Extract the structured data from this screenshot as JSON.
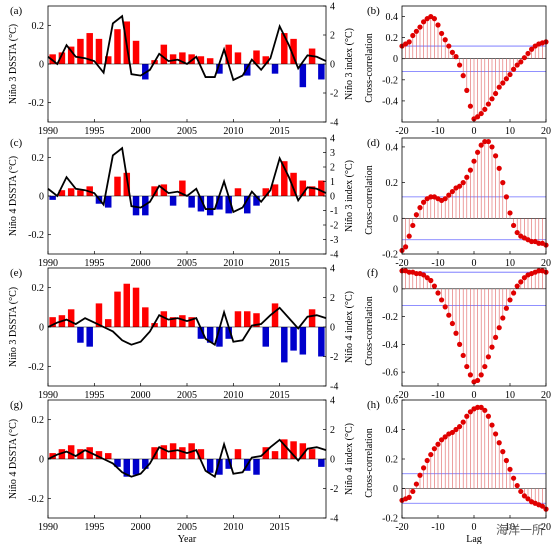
{
  "figure": {
    "watermark": "海洋一所",
    "colors": {
      "positive": "#ff0000",
      "negative": "#0000cc",
      "index_line": "#000000",
      "corr_marker": "#e00000",
      "corr_stem": "#e06060",
      "significance": "#6b6bff"
    }
  },
  "chart_data": [
    {
      "id": "a",
      "panel_label": "(a)",
      "type": "bar",
      "xlabel": "",
      "ylabel_left": "Niño 3 DSSTA (°C)",
      "ylabel_right": "Niño 3 index (°C)",
      "x_range": [
        1990,
        2020
      ],
      "x_ticks": [
        "1990",
        "1995",
        "2000",
        "2005",
        "2010",
        "2015"
      ],
      "y_left_range": [
        -0.3,
        0.3
      ],
      "y_left_ticks": [
        "-0.2",
        "0",
        "0.2"
      ],
      "y_right_range": [
        -4,
        4
      ],
      "y_right_ticks": [
        "-4",
        "-2",
        "0",
        "2",
        "4"
      ],
      "series": [
        {
          "name": "",
          "kind": "bar_pos_neg",
          "x": [
            1990,
            1991,
            1992,
            1993,
            1994,
            1995,
            1996,
            1997,
            1998,
            1999,
            2000,
            2001,
            2002,
            2003,
            2004,
            2005,
            2006,
            2007,
            2008,
            2009,
            2010,
            2011,
            2012,
            2013,
            2014,
            2015,
            2016,
            2017,
            2018,
            2019
          ],
          "values": [
            0.05,
            0.06,
            0.09,
            0.13,
            0.16,
            0.13,
            0.04,
            0.18,
            0.22,
            0.12,
            -0.08,
            0.02,
            0.1,
            0.05,
            0.06,
            0.05,
            0.04,
            0.03,
            -0.05,
            0.1,
            0.06,
            -0.06,
            0.07,
            0.04,
            -0.05,
            0.16,
            0.13,
            -0.12,
            0.08,
            -0.08
          ]
        },
        {
          "name": "",
          "kind": "line_right_axis",
          "x": [
            1990,
            1991,
            1992,
            1993,
            1994,
            1995,
            1996,
            1997,
            1998,
            1999,
            2000,
            2001,
            2002,
            2003,
            2004,
            2005,
            2006,
            2007,
            2008,
            2009,
            2010,
            2011,
            2012,
            2013,
            2014,
            2015,
            2016,
            2017,
            2018,
            2019,
            2020
          ],
          "values": [
            0.5,
            0.0,
            1.3,
            0.5,
            0.4,
            0.2,
            -0.6,
            2.8,
            3.3,
            -0.7,
            -0.8,
            -0.4,
            0.7,
            0.2,
            0.3,
            0.0,
            0.5,
            -0.9,
            -0.9,
            1.0,
            -1.1,
            -0.8,
            0.3,
            -0.4,
            0.4,
            2.6,
            1.3,
            -0.3,
            0.6,
            0.5,
            0.2
          ]
        }
      ]
    },
    {
      "id": "b",
      "panel_label": "(b)",
      "type": "stem",
      "xlabel": "",
      "ylabel": "Cross-correlation",
      "x_range": [
        -20,
        20
      ],
      "x_ticks": [
        "-20",
        "-10",
        "0",
        "10",
        "20"
      ],
      "y_range": [
        -0.6,
        0.5
      ],
      "y_ticks": [
        "-0.4",
        "-0.2",
        "0",
        "0.2",
        "0.4"
      ],
      "significance": 0.12,
      "x": [
        -20,
        -19,
        -18,
        -17,
        -16,
        -15,
        -14,
        -13,
        -12,
        -11,
        -10,
        -9,
        -8,
        -7,
        -6,
        -5,
        -4,
        -3,
        -2,
        -1,
        0,
        1,
        2,
        3,
        4,
        5,
        6,
        7,
        8,
        9,
        10,
        11,
        12,
        13,
        14,
        15,
        16,
        17,
        18,
        19,
        20
      ],
      "values": [
        0.12,
        0.14,
        0.16,
        0.22,
        0.26,
        0.3,
        0.35,
        0.38,
        0.4,
        0.38,
        0.32,
        0.24,
        0.18,
        0.12,
        0.06,
        0.02,
        -0.06,
        -0.16,
        -0.3,
        -0.45,
        -0.57,
        -0.55,
        -0.52,
        -0.48,
        -0.43,
        -0.38,
        -0.33,
        -0.27,
        -0.23,
        -0.19,
        -0.15,
        -0.1,
        -0.06,
        -0.03,
        0.01,
        0.05,
        0.09,
        0.12,
        0.14,
        0.15,
        0.16
      ]
    },
    {
      "id": "c",
      "panel_label": "(c)",
      "type": "bar",
      "xlabel": "",
      "ylabel_left": "Niño 4 DSSTA (°C)",
      "ylabel_right": "Niño 3 index (°C)",
      "x_range": [
        1990,
        2020
      ],
      "x_ticks": [
        "1990",
        "1995",
        "2000",
        "2005",
        "2010",
        "2015"
      ],
      "y_left_range": [
        -0.3,
        0.3
      ],
      "y_left_ticks": [
        "-0.2",
        "0",
        "0.2"
      ],
      "y_right_range": [
        -4,
        4
      ],
      "y_right_ticks": [
        "-4",
        "-3",
        "-2",
        "-1",
        "0",
        "1",
        "2",
        "3",
        "4"
      ],
      "series": [
        {
          "name": "",
          "kind": "bar_pos_neg",
          "x": [
            1990,
            1991,
            1992,
            1993,
            1994,
            1995,
            1996,
            1997,
            1998,
            1999,
            2000,
            2001,
            2002,
            2003,
            2004,
            2005,
            2006,
            2007,
            2008,
            2009,
            2010,
            2011,
            2012,
            2013,
            2014,
            2015,
            2016,
            2017,
            2018,
            2019
          ],
          "values": [
            -0.02,
            0.03,
            0.04,
            0.03,
            0.05,
            -0.04,
            -0.06,
            0.1,
            0.12,
            -0.1,
            -0.1,
            0.05,
            0.06,
            -0.05,
            0.08,
            -0.06,
            -0.08,
            -0.1,
            -0.07,
            -0.09,
            0.04,
            -0.09,
            -0.05,
            0.04,
            0.06,
            0.18,
            0.12,
            0.08,
            0.05,
            0.08
          ]
        },
        {
          "name": "",
          "kind": "line_right_axis",
          "x": [
            1990,
            1991,
            1992,
            1993,
            1994,
            1995,
            1996,
            1997,
            1998,
            1999,
            2000,
            2001,
            2002,
            2003,
            2004,
            2005,
            2006,
            2007,
            2008,
            2009,
            2010,
            2011,
            2012,
            2013,
            2014,
            2015,
            2016,
            2017,
            2018,
            2019,
            2020
          ],
          "values": [
            0.5,
            0.0,
            1.3,
            0.5,
            0.4,
            0.2,
            -0.6,
            2.8,
            3.3,
            -0.7,
            -0.8,
            -0.4,
            0.7,
            0.2,
            0.3,
            0.0,
            0.5,
            -0.9,
            -0.9,
            1.0,
            -1.1,
            -0.8,
            0.3,
            -0.4,
            0.4,
            2.6,
            1.3,
            -0.3,
            0.6,
            0.5,
            0.2
          ]
        }
      ]
    },
    {
      "id": "d",
      "panel_label": "(d)",
      "type": "stem",
      "xlabel": "",
      "ylabel": "Cross-correlation",
      "x_range": [
        -20,
        20
      ],
      "x_ticks": [
        "-20",
        "-10",
        "0",
        "10",
        "20"
      ],
      "y_range": [
        -0.2,
        0.45
      ],
      "y_ticks": [
        "-0.2",
        "0",
        "0.2",
        "0.4"
      ],
      "significance": 0.12,
      "x": [
        -20,
        -19,
        -18,
        -17,
        -16,
        -15,
        -14,
        -13,
        -12,
        -11,
        -10,
        -9,
        -8,
        -7,
        -6,
        -5,
        -4,
        -3,
        -2,
        -1,
        0,
        1,
        2,
        3,
        4,
        5,
        6,
        7,
        8,
        9,
        10,
        11,
        12,
        13,
        14,
        15,
        16,
        17,
        18,
        19,
        20
      ],
      "values": [
        -0.18,
        -0.16,
        -0.1,
        -0.04,
        0.02,
        0.06,
        0.09,
        0.11,
        0.12,
        0.12,
        0.11,
        0.1,
        0.11,
        0.13,
        0.15,
        0.17,
        0.18,
        0.2,
        0.23,
        0.27,
        0.32,
        0.37,
        0.41,
        0.43,
        0.43,
        0.4,
        0.35,
        0.28,
        0.2,
        0.12,
        0.03,
        -0.04,
        -0.08,
        -0.1,
        -0.11,
        -0.12,
        -0.13,
        -0.13,
        -0.14,
        -0.14,
        -0.15
      ]
    },
    {
      "id": "e",
      "panel_label": "(e)",
      "type": "bar",
      "xlabel": "",
      "ylabel_left": "Niño 3 DSSTA (°C)",
      "ylabel_right": "Niño 4 index (°C)",
      "x_range": [
        1990,
        2020
      ],
      "x_ticks": [
        "1990",
        "1995",
        "2000",
        "2005",
        "2010",
        "2015"
      ],
      "y_left_range": [
        -0.3,
        0.3
      ],
      "y_left_ticks": [
        "-0.2",
        "0",
        "0.2"
      ],
      "y_right_range": [
        -4,
        4
      ],
      "y_right_ticks": [
        "-4",
        "-2",
        "0",
        "2",
        "4"
      ],
      "series": [
        {
          "name": "",
          "kind": "bar_pos_neg",
          "x": [
            1990,
            1991,
            1992,
            1993,
            1994,
            1995,
            1996,
            1997,
            1998,
            1999,
            2000,
            2001,
            2002,
            2003,
            2004,
            2005,
            2006,
            2007,
            2008,
            2009,
            2010,
            2011,
            2012,
            2013,
            2014,
            2015,
            2016,
            2017,
            2018,
            2019
          ],
          "values": [
            0.05,
            0.06,
            0.09,
            -0.08,
            -0.1,
            0.12,
            0.04,
            0.18,
            0.22,
            0.2,
            0.1,
            0.02,
            0.08,
            0.05,
            0.06,
            0.05,
            -0.06,
            -0.08,
            -0.1,
            -0.06,
            0.08,
            0.08,
            0.07,
            -0.1,
            0.12,
            -0.18,
            -0.12,
            -0.14,
            0.09,
            -0.15
          ]
        },
        {
          "name": "",
          "kind": "line_right_axis",
          "x": [
            1990,
            1991,
            1992,
            1993,
            1994,
            1995,
            1996,
            1997,
            1998,
            1999,
            2000,
            2001,
            2002,
            2003,
            2004,
            2005,
            2006,
            2007,
            2008,
            2009,
            2010,
            2011,
            2012,
            2013,
            2014,
            2015,
            2016,
            2017,
            2018,
            2019,
            2020
          ],
          "values": [
            0.0,
            0.3,
            0.5,
            0.2,
            0.6,
            0.3,
            0.0,
            -0.3,
            -0.9,
            -1.2,
            -1.0,
            -0.3,
            0.8,
            0.5,
            0.6,
            0.4,
            0.6,
            -0.8,
            -1.2,
            1.0,
            -1.0,
            -0.9,
            0.1,
            0.2,
            0.8,
            1.3,
            0.6,
            -0.1,
            0.7,
            0.8,
            0.6
          ]
        }
      ]
    },
    {
      "id": "f",
      "panel_label": "(f)",
      "type": "stem",
      "xlabel": "",
      "ylabel": "Cross-correlation",
      "x_range": [
        -20,
        20
      ],
      "x_ticks": [
        "-20",
        "-10",
        "0",
        "10",
        "20"
      ],
      "y_range": [
        -0.7,
        0.15
      ],
      "y_ticks": [
        "-0.6",
        "-0.4",
        "-0.2",
        "0"
      ],
      "significance": 0.12,
      "x": [
        -20,
        -19,
        -18,
        -17,
        -16,
        -15,
        -14,
        -13,
        -12,
        -11,
        -10,
        -9,
        -8,
        -7,
        -6,
        -5,
        -4,
        -3,
        -2,
        -1,
        0,
        1,
        2,
        3,
        4,
        5,
        6,
        7,
        8,
        9,
        10,
        11,
        12,
        13,
        14,
        15,
        16,
        17,
        18,
        19,
        20
      ],
      "values": [
        0.13,
        0.13,
        0.12,
        0.12,
        0.11,
        0.11,
        0.1,
        0.08,
        0.06,
        0.02,
        -0.03,
        -0.08,
        -0.13,
        -0.19,
        -0.25,
        -0.32,
        -0.4,
        -0.48,
        -0.56,
        -0.62,
        -0.67,
        -0.66,
        -0.62,
        -0.56,
        -0.49,
        -0.42,
        -0.35,
        -0.28,
        -0.21,
        -0.14,
        -0.08,
        -0.03,
        0.02,
        0.05,
        0.08,
        0.1,
        0.11,
        0.12,
        0.13,
        0.13,
        0.12
      ]
    },
    {
      "id": "g",
      "panel_label": "(g)",
      "type": "bar",
      "xlabel": "Year",
      "ylabel_left": "Niño 4 DSSTA (°C)",
      "ylabel_right": "Niño 4 index (°C)",
      "x_range": [
        1990,
        2020
      ],
      "x_ticks": [
        "1990",
        "1995",
        "2000",
        "2005",
        "2010",
        "2015"
      ],
      "y_left_range": [
        -0.3,
        0.3
      ],
      "y_left_ticks": [
        "-0.2",
        "0",
        "0.2"
      ],
      "y_right_range": [
        -4,
        4
      ],
      "y_right_ticks": [
        "-4",
        "-2",
        "0",
        "2",
        "4"
      ],
      "series": [
        {
          "name": "",
          "kind": "bar_pos_neg",
          "x": [
            1990,
            1991,
            1992,
            1993,
            1994,
            1995,
            1996,
            1997,
            1998,
            1999,
            2000,
            2001,
            2002,
            2003,
            2004,
            2005,
            2006,
            2007,
            2008,
            2009,
            2010,
            2011,
            2012,
            2013,
            2014,
            2015,
            2016,
            2017,
            2018,
            2019
          ],
          "values": [
            0.03,
            0.05,
            0.07,
            0.05,
            0.06,
            0.04,
            0.03,
            -0.04,
            -0.09,
            -0.08,
            -0.05,
            0.06,
            0.07,
            0.08,
            0.06,
            0.08,
            0.05,
            -0.07,
            -0.08,
            -0.05,
            0.05,
            -0.06,
            -0.08,
            0.06,
            0.04,
            0.1,
            0.09,
            0.08,
            0.05,
            -0.04
          ]
        },
        {
          "name": "",
          "kind": "line_right_axis",
          "x": [
            1990,
            1991,
            1992,
            1993,
            1994,
            1995,
            1996,
            1997,
            1998,
            1999,
            2000,
            2001,
            2002,
            2003,
            2004,
            2005,
            2006,
            2007,
            2008,
            2009,
            2010,
            2011,
            2012,
            2013,
            2014,
            2015,
            2016,
            2017,
            2018,
            2019,
            2020
          ],
          "values": [
            0.0,
            0.3,
            0.5,
            0.2,
            0.6,
            0.3,
            0.0,
            -0.3,
            -0.9,
            -1.2,
            -1.0,
            -0.3,
            0.8,
            0.5,
            0.6,
            0.4,
            0.6,
            -0.8,
            -1.2,
            1.0,
            -1.0,
            -0.9,
            0.1,
            0.2,
            0.8,
            1.3,
            0.6,
            -0.1,
            0.7,
            0.8,
            0.6
          ]
        }
      ]
    },
    {
      "id": "h",
      "panel_label": "(h)",
      "type": "stem",
      "xlabel": "Lag",
      "ylabel": "Cross-correlation",
      "x_range": [
        -20,
        20
      ],
      "x_ticks": [
        "-20",
        "-10",
        "0",
        "10",
        "20"
      ],
      "y_range": [
        -0.2,
        0.6
      ],
      "y_ticks": [
        "-0.2",
        "0",
        "0.2",
        "0.4",
        "0.6"
      ],
      "significance": 0.1,
      "x": [
        -20,
        -19,
        -18,
        -17,
        -16,
        -15,
        -14,
        -13,
        -12,
        -11,
        -10,
        -9,
        -8,
        -7,
        -6,
        -5,
        -4,
        -3,
        -2,
        -1,
        0,
        1,
        2,
        3,
        4,
        5,
        6,
        7,
        8,
        9,
        10,
        11,
        12,
        13,
        14,
        15,
        16,
        17,
        18,
        19,
        20
      ],
      "values": [
        -0.08,
        -0.07,
        -0.06,
        -0.02,
        0.03,
        0.09,
        0.14,
        0.19,
        0.23,
        0.27,
        0.3,
        0.33,
        0.35,
        0.37,
        0.38,
        0.4,
        0.42,
        0.45,
        0.49,
        0.52,
        0.54,
        0.55,
        0.55,
        0.53,
        0.49,
        0.43,
        0.37,
        0.31,
        0.25,
        0.19,
        0.13,
        0.07,
        0.02,
        -0.02,
        -0.05,
        -0.07,
        -0.09,
        -0.1,
        -0.11,
        -0.12,
        -0.14
      ]
    }
  ]
}
